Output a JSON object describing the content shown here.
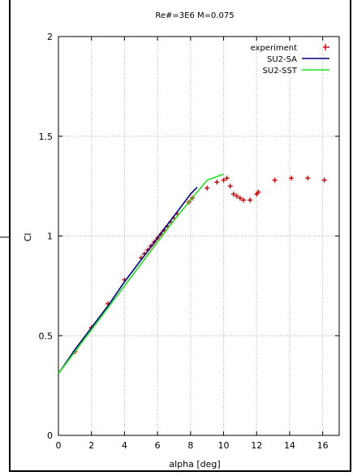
{
  "chart_data": {
    "type": "line",
    "title": "Re#=3E6 M=0.075",
    "xlabel": "alpha [deg]",
    "ylabel": "Cl",
    "xlim": [
      0,
      17
    ],
    "ylim": [
      0,
      2
    ],
    "xticks": [
      "0",
      "2",
      "4",
      "6",
      "8",
      "10",
      "12",
      "14",
      "16"
    ],
    "yticks": [
      "0",
      "0.5",
      "1",
      "1.5",
      "2"
    ],
    "grid": true,
    "legend_position": "top-right",
    "series": [
      {
        "name": "experiment",
        "kind": "scatter",
        "marker": "+",
        "color": "#cc0000",
        "x": [
          1.0,
          2.0,
          3.0,
          4.0,
          5.0,
          5.2,
          5.4,
          5.6,
          5.8,
          6.0,
          6.2,
          6.4,
          6.6,
          6.8,
          7.0,
          7.2,
          7.9,
          8.1,
          9.0,
          9.6,
          10.0,
          10.2,
          10.4,
          10.6,
          10.8,
          11.0,
          11.2,
          11.6,
          12.0,
          12.1,
          13.1,
          14.1,
          15.1,
          16.1
        ],
        "y": [
          0.42,
          0.54,
          0.66,
          0.78,
          0.89,
          0.91,
          0.93,
          0.95,
          0.97,
          0.99,
          1.01,
          1.03,
          1.05,
          1.07,
          1.09,
          1.11,
          1.17,
          1.19,
          1.24,
          1.27,
          1.28,
          1.29,
          1.25,
          1.21,
          1.2,
          1.19,
          1.18,
          1.18,
          1.21,
          1.22,
          1.28,
          1.29,
          1.29,
          1.28
        ]
      },
      {
        "name": "SU2-SA",
        "kind": "line",
        "color": "#00007f",
        "x": [
          0,
          1,
          2,
          3,
          4,
          5,
          6,
          7,
          8,
          8.4
        ],
        "y": [
          0.31,
          0.43,
          0.54,
          0.65,
          0.77,
          0.88,
          0.99,
          1.1,
          1.21,
          1.245
        ]
      },
      {
        "name": "SU2-SST",
        "kind": "line",
        "color": "#22dd22",
        "x": [
          0,
          1,
          2,
          3,
          4,
          5,
          6,
          7,
          8,
          9,
          10
        ],
        "y": [
          0.31,
          0.42,
          0.53,
          0.64,
          0.75,
          0.86,
          0.97,
          1.08,
          1.18,
          1.28,
          1.31
        ]
      }
    ]
  }
}
